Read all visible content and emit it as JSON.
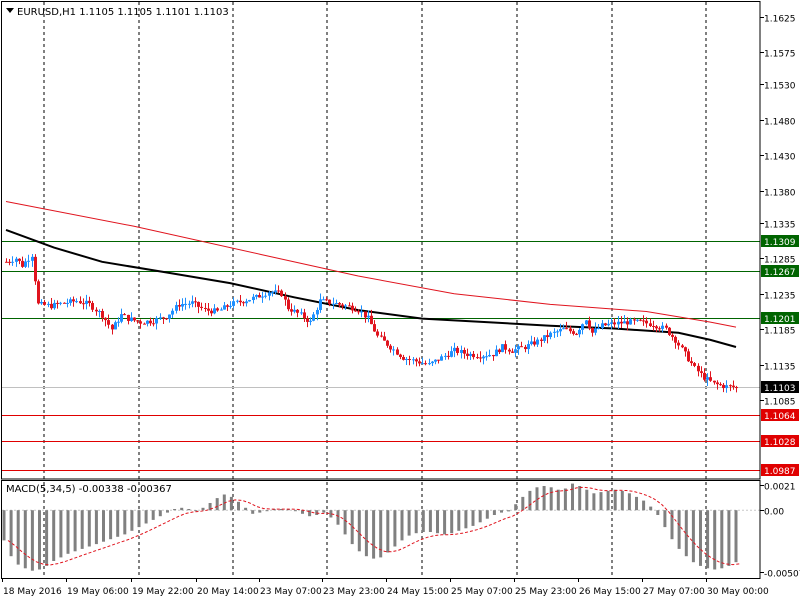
{
  "chart_header": {
    "title": "EURUSD,H1  1.1105 1.1105 1.1101 1.1103",
    "menu_icon": "triangle-down-icon"
  },
  "macd_header": {
    "title": "MACD(5,34,5) -0.00338 -0.00367"
  },
  "colors": {
    "background": "#ffffff",
    "bull_candle": "#1e90ff",
    "bear_candle": "#e0141e",
    "ma_fast": "#000000",
    "ma_slow": "#e0141e",
    "green_level": "#006400",
    "red_level": "#e00000",
    "current_price": "#c0c0c0",
    "macd_hist": "#808080",
    "macd_signal": "#e0141e",
    "grid": "#000000"
  },
  "chart_data": [
    {
      "type": "line",
      "subtype": "candlestick",
      "symbol": "EURUSD",
      "timeframe": "H1",
      "x_ticks": [
        "18 May 2016",
        "19 May 06:00",
        "19 May 22:00",
        "20 May 14:00",
        "23 May 07:00",
        "23 May 23:00",
        "24 May 15:00",
        "25 May 07:00",
        "25 May 23:00",
        "26 May 15:00",
        "27 May 07:00",
        "30 May 00:00"
      ],
      "y_ticks": [
        "1.1625",
        "1.1575",
        "1.1530",
        "1.1480",
        "1.1430",
        "1.1380",
        "1.1335",
        "1.1285",
        "1.1235",
        "1.1185",
        "1.1135",
        "1.1085"
      ],
      "ylim": [
        1.0974,
        1.1646
      ],
      "grid": true,
      "grid_style": "vertical dashed",
      "levels": [
        {
          "label": "1.1309",
          "value": 1.1309,
          "color": "green"
        },
        {
          "label": "1.1267",
          "value": 1.1267,
          "color": "green"
        },
        {
          "label": "1.1201",
          "value": 1.1201,
          "color": "green"
        },
        {
          "label": "1.1064",
          "value": 1.1064,
          "color": "red"
        },
        {
          "label": "1.1028",
          "value": 1.1028,
          "color": "red"
        },
        {
          "label": "1.0987",
          "value": 1.0987,
          "color": "red"
        }
      ],
      "current_price": {
        "label": "1.1103",
        "value": 1.1103
      },
      "close_path": [
        [
          0,
          1.128
        ],
        [
          3,
          1.1285
        ],
        [
          5,
          1.1275
        ],
        [
          8,
          1.129
        ],
        [
          10,
          1.122
        ],
        [
          14,
          1.1218
        ],
        [
          18,
          1.1222
        ],
        [
          22,
          1.1225
        ],
        [
          26,
          1.122
        ],
        [
          30,
          1.1205
        ],
        [
          33,
          1.1185
        ],
        [
          36,
          1.1205
        ],
        [
          38,
          1.12
        ],
        [
          42,
          1.1195
        ],
        [
          46,
          1.1197
        ],
        [
          50,
          1.1203
        ],
        [
          54,
          1.122
        ],
        [
          58,
          1.1222
        ],
        [
          62,
          1.1212
        ],
        [
          66,
          1.121
        ],
        [
          70,
          1.122
        ],
        [
          74,
          1.1225
        ],
        [
          78,
          1.123
        ],
        [
          82,
          1.1238
        ],
        [
          86,
          1.1235
        ],
        [
          88,
          1.1215
        ],
        [
          92,
          1.1205
        ],
        [
          95,
          1.1195
        ],
        [
          98,
          1.1225
        ],
        [
          102,
          1.1222
        ],
        [
          106,
          1.1218
        ],
        [
          110,
          1.1213
        ],
        [
          113,
          1.12
        ],
        [
          116,
          1.1175
        ],
        [
          120,
          1.116
        ],
        [
          124,
          1.1145
        ],
        [
          128,
          1.114
        ],
        [
          132,
          1.1135
        ],
        [
          136,
          1.1145
        ],
        [
          140,
          1.1155
        ],
        [
          144,
          1.115
        ],
        [
          148,
          1.1148
        ],
        [
          152,
          1.115
        ],
        [
          155,
          1.116
        ],
        [
          158,
          1.1155
        ],
        [
          162,
          1.116
        ],
        [
          166,
          1.1168
        ],
        [
          170,
          1.1178
        ],
        [
          174,
          1.1185
        ],
        [
          178,
          1.118
        ],
        [
          181,
          1.12
        ],
        [
          183,
          1.118
        ],
        [
          186,
          1.119
        ],
        [
          190,
          1.1193
        ],
        [
          194,
          1.1195
        ],
        [
          198,
          1.1195
        ],
        [
          202,
          1.1192
        ],
        [
          206,
          1.1185
        ],
        [
          209,
          1.117
        ],
        [
          212,
          1.115
        ],
        [
          215,
          1.113
        ],
        [
          218,
          1.1117
        ],
        [
          221,
          1.1108
        ],
        [
          224,
          1.1105
        ],
        [
          228,
          1.1103
        ]
      ],
      "ma_fast_path": [
        [
          0,
          1.1325
        ],
        [
          15,
          1.13
        ],
        [
          30,
          1.128
        ],
        [
          50,
          1.1265
        ],
        [
          70,
          1.125
        ],
        [
          90,
          1.123
        ],
        [
          110,
          1.1212
        ],
        [
          130,
          1.12
        ],
        [
          150,
          1.1195
        ],
        [
          170,
          1.119
        ],
        [
          190,
          1.1186
        ],
        [
          210,
          1.118
        ],
        [
          220,
          1.117
        ],
        [
          228,
          1.116
        ]
      ],
      "ma_slow_path": [
        [
          0,
          1.1365
        ],
        [
          40,
          1.133
        ],
        [
          80,
          1.129
        ],
        [
          110,
          1.126
        ],
        [
          140,
          1.1235
        ],
        [
          170,
          1.122
        ],
        [
          200,
          1.121
        ],
        [
          220,
          1.1195
        ],
        [
          228,
          1.1188
        ]
      ]
    },
    {
      "type": "bar",
      "indicator": "MACD(5,34,5)",
      "y_ticks": [
        "0.0021",
        "0.00",
        "-0.00507"
      ],
      "ylim": [
        -0.0056,
        0.0025
      ],
      "values": [
        -0.0025,
        -0.0038,
        -0.0045,
        -0.0048,
        -0.005,
        -0.0049,
        -0.0046,
        -0.0042,
        -0.0039,
        -0.0036,
        -0.0034,
        -0.0032,
        -0.003,
        -0.0028,
        -0.0026,
        -0.0024,
        -0.0022,
        -0.002,
        -0.0017,
        -0.0014,
        -0.0011,
        -0.0008,
        -0.0005,
        -0.0002,
        0.0001,
        0.0002,
        0.0001,
        0.0,
        0.0002,
        0.0006,
        0.001,
        0.0013,
        0.0011,
        0.0007,
        0.0002,
        -0.0003,
        -0.0002,
        0.0,
        0.0001,
        0.0001,
        0.0001,
        0.0,
        -0.0003,
        -0.0005,
        -0.0004,
        -0.0002,
        -0.0006,
        -0.0012,
        -0.002,
        -0.0028,
        -0.0034,
        -0.0038,
        -0.004,
        -0.0039,
        -0.0035,
        -0.003,
        -0.0025,
        -0.0021,
        -0.0019,
        -0.0018,
        -0.0018,
        -0.0019,
        -0.002,
        -0.0019,
        -0.0017,
        -0.0015,
        -0.0013,
        -0.001,
        -0.0007,
        -0.0004,
        -0.0002,
        -0.0001,
        0.0005,
        0.0011,
        0.0016,
        0.0019,
        0.002,
        0.0019,
        0.0017,
        0.0018,
        0.0022,
        0.002,
        0.0017,
        0.0014,
        0.0015,
        0.0016,
        0.0017,
        0.0016,
        0.0014,
        0.0011,
        0.0008,
        0.0003,
        -0.0004,
        -0.0014,
        -0.0024,
        -0.0032,
        -0.0038,
        -0.0043,
        -0.0046,
        -0.0048,
        -0.0049,
        -0.0048,
        -0.0046,
        -0.0043
      ]
    }
  ]
}
